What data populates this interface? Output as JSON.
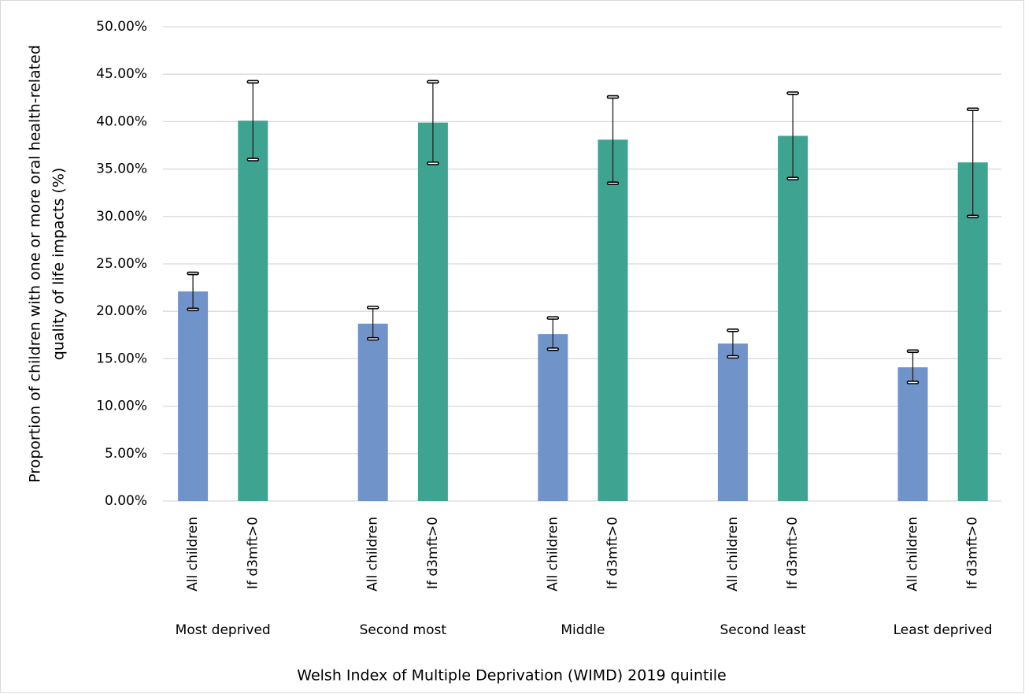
{
  "chart_data": {
    "type": "bar",
    "ylabel": [
      "Proportion of children with one or more oral health-related",
      "quality of life impacts (%)"
    ],
    "xlabel": "Welsh Index of Multiple Deprivation (WIMD) 2019 quintile",
    "categories": [
      "Most deprived",
      "Second most",
      "Middle",
      "Second least",
      "Least deprived"
    ],
    "series": [
      {
        "name": "All children",
        "color": "#7094c9",
        "values": [
          22.1,
          18.7,
          17.6,
          16.6,
          14.1
        ],
        "ci_lower": [
          20.2,
          17.1,
          16.0,
          15.2,
          12.5
        ],
        "ci_upper": [
          24.0,
          20.4,
          19.3,
          18.0,
          15.8
        ]
      },
      {
        "name": "If d3mft>0",
        "color": "#3fa392",
        "values": [
          40.1,
          39.9,
          38.1,
          38.5,
          35.7
        ],
        "ci_lower": [
          36.0,
          35.6,
          33.5,
          34.0,
          30.0
        ],
        "ci_upper": [
          44.2,
          44.2,
          42.6,
          43.0,
          41.3
        ]
      }
    ],
    "ylim": [
      0,
      50
    ],
    "yticks": [
      {
        "value": 0,
        "label": "0.00%"
      },
      {
        "value": 5,
        "label": "5.00%"
      },
      {
        "value": 10,
        "label": "10.00%"
      },
      {
        "value": 15,
        "label": "15.00%"
      },
      {
        "value": 20,
        "label": "20.00%"
      },
      {
        "value": 25,
        "label": "25.00%"
      },
      {
        "value": 30,
        "label": "30.00%"
      },
      {
        "value": 35,
        "label": "35.00%"
      },
      {
        "value": 40,
        "label": "40.00%"
      },
      {
        "value": 45,
        "label": "45.00%"
      },
      {
        "value": 50,
        "label": "50.00%"
      }
    ],
    "grid": true
  }
}
